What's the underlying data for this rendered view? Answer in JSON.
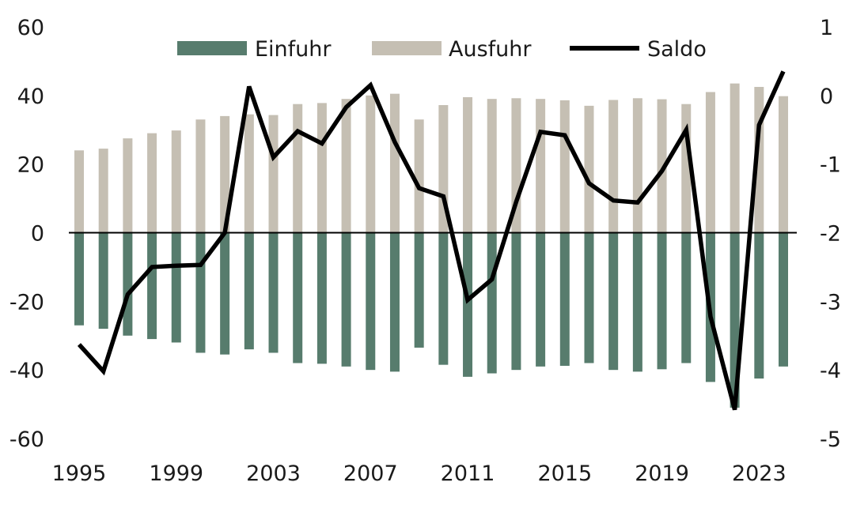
{
  "chart_data": {
    "type": "bar",
    "title": "",
    "xlabel": "",
    "ylabel": "",
    "ylabel_right": "",
    "ylim": [
      -60,
      60
    ],
    "ylim_right": [
      -5,
      1
    ],
    "yticks_left": [
      "-60",
      "-40",
      "-20",
      "0",
      "20",
      "40",
      "60"
    ],
    "yticks_right": [
      "-5",
      "-4",
      "-3",
      "-2",
      "-1",
      "0",
      "1"
    ],
    "x": [
      1995,
      1996,
      1997,
      1998,
      1999,
      2000,
      2001,
      2002,
      2003,
      2004,
      2005,
      2006,
      2007,
      2008,
      2009,
      2010,
      2011,
      2012,
      2013,
      2014,
      2015,
      2016,
      2017,
      2018,
      2019,
      2020,
      2021,
      2022,
      2023,
      2024
    ],
    "xticks": [
      "1995",
      "1999",
      "2003",
      "2007",
      "2011",
      "2015",
      "2019",
      "2023"
    ],
    "legend": {
      "position": "top"
    },
    "grid": false,
    "series": [
      {
        "name": "Einfuhr",
        "kind": "bar",
        "axis": "left",
        "color": "#577c6d",
        "values": [
          -27,
          -28,
          -30,
          -31,
          -32,
          -35,
          -35.5,
          -34,
          -35,
          -38,
          -38.2,
          -39,
          -40,
          -40.5,
          -33.5,
          -38.5,
          -42,
          -41,
          -40,
          -39,
          -38.8,
          -38,
          -40,
          -40.5,
          -39.8,
          -38,
          -43.5,
          -51,
          -42.5,
          -39
        ]
      },
      {
        "name": "Ausfuhr",
        "kind": "bar",
        "axis": "left",
        "color": "#c5bfb3",
        "values": [
          24,
          24.5,
          27.5,
          29,
          29.8,
          33,
          34,
          34.5,
          34.3,
          37.5,
          37.8,
          39,
          40,
          40.5,
          33,
          37.2,
          39.5,
          39,
          39.2,
          39,
          38.6,
          37,
          38.7,
          39.2,
          38.9,
          37.5,
          41,
          43.5,
          42.5,
          39.8
        ]
      },
      {
        "name": "Saldo",
        "kind": "line",
        "axis": "right",
        "color": "#000000",
        "values": [
          -3.63,
          -4.02,
          -2.9,
          -2.5,
          -2.48,
          -2.47,
          -2.0,
          0.13,
          -0.9,
          -0.52,
          -0.7,
          -0.17,
          0.15,
          -0.68,
          -1.35,
          -1.47,
          -2.98,
          -2.68,
          -1.55,
          -0.53,
          -0.58,
          -1.28,
          -1.53,
          -1.56,
          -1.1,
          -0.5,
          -3.22,
          -4.58,
          -0.43,
          0.35
        ]
      }
    ]
  }
}
